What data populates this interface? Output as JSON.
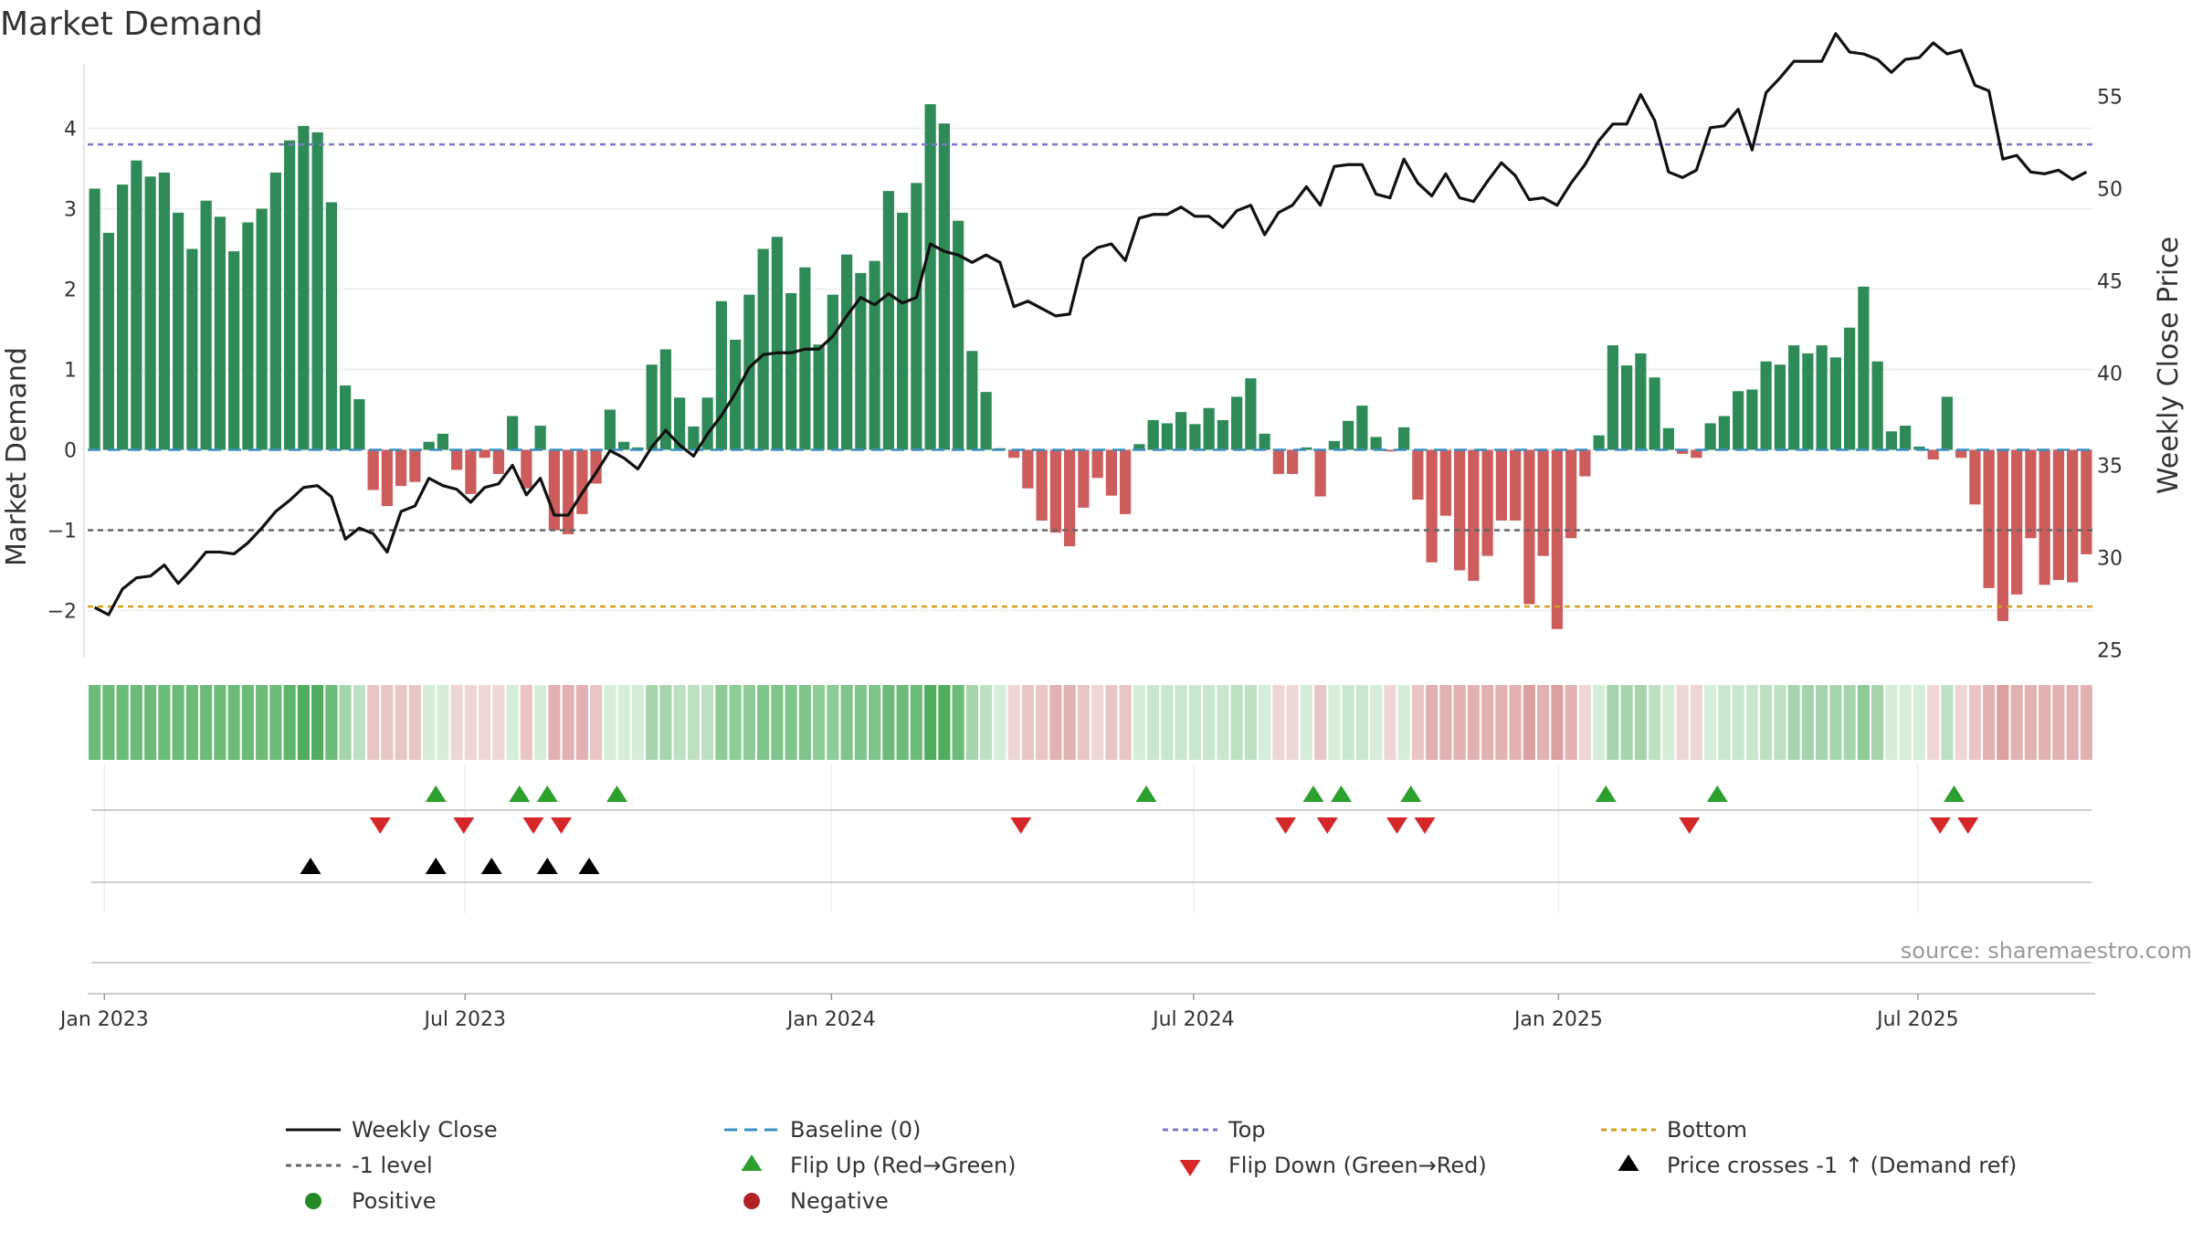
{
  "chart_data": {
    "type": "bar",
    "title": "Market Demand",
    "ylabel": "Market Demand",
    "y2label": "Weekly Close Price",
    "ylim": [
      -2.55,
      4.7
    ],
    "y2lim": [
      24.5,
      56.5
    ],
    "yticks": [
      -2,
      -1,
      0,
      1,
      2,
      3,
      4
    ],
    "y2ticks": [
      25,
      30,
      35,
      40,
      45,
      50,
      55
    ],
    "x_start": "2022-12-26",
    "x_interval_days": 7,
    "date_ticks": [
      {
        "label": "Jan 2023",
        "week": 0.7
      },
      {
        "label": "Jul 2023",
        "week": 26.6
      },
      {
        "label": "Jan 2024",
        "week": 52.9
      },
      {
        "label": "Jul 2024",
        "week": 78.9
      },
      {
        "label": "Jan 2025",
        "week": 105.1
      },
      {
        "label": "Jul 2025",
        "week": 130.9
      }
    ],
    "reference_lines": [
      {
        "name": "Top",
        "value": 3.8,
        "color": "#7b78c8",
        "dash": "6,5"
      },
      {
        "name": "-1 level",
        "value": -1,
        "color": "#666666",
        "dash": "6,5"
      },
      {
        "name": "Bottom",
        "value": -1.95,
        "color": "#d4a018",
        "dash": "6,5"
      },
      {
        "name": "Baseline (0)",
        "value": 0,
        "color": "#3a8fc0",
        "dash": "14,8"
      }
    ],
    "demand": [
      3.25,
      2.7,
      3.3,
      3.6,
      3.4,
      3.45,
      2.95,
      2.5,
      3.1,
      2.9,
      2.47,
      2.83,
      3.0,
      3.45,
      3.85,
      4.03,
      3.95,
      3.08,
      0.8,
      0.63,
      -0.5,
      -0.7,
      -0.45,
      -0.4,
      0.1,
      0.2,
      -0.25,
      -0.55,
      -0.1,
      -0.3,
      0.42,
      -0.48,
      0.3,
      -1.0,
      -1.05,
      -0.8,
      -0.42,
      0.5,
      0.1,
      0.03,
      1.06,
      1.25,
      0.65,
      0.29,
      0.65,
      1.85,
      1.37,
      1.93,
      2.5,
      2.65,
      1.95,
      2.27,
      1.31,
      1.93,
      2.43,
      2.2,
      2.35,
      3.22,
      2.95,
      3.32,
      4.3,
      4.06,
      2.85,
      1.23,
      0.72,
      0.02,
      -0.1,
      -0.48,
      -0.88,
      -1.03,
      -1.2,
      -0.72,
      -0.35,
      -0.57,
      -0.8,
      0.07,
      0.37,
      0.33,
      0.47,
      0.32,
      0.52,
      0.37,
      0.66,
      0.89,
      0.2,
      -0.3,
      -0.3,
      0.03,
      -0.58,
      0.11,
      0.36,
      0.55,
      0.16,
      -0.02,
      0.28,
      -0.62,
      -1.4,
      -0.82,
      -1.5,
      -1.63,
      -1.32,
      -0.88,
      -0.88,
      -1.92,
      -1.32,
      -2.23,
      -1.1,
      -0.33,
      0.18,
      1.3,
      1.05,
      1.2,
      0.9,
      0.27,
      -0.05,
      -0.1,
      0.33,
      0.42,
      0.73,
      0.75,
      1.1,
      1.06,
      1.3,
      1.2,
      1.3,
      1.15,
      1.52,
      2.03,
      1.1,
      0.23,
      0.3,
      0.04,
      -0.12,
      0.66,
      -0.1,
      -0.68,
      -1.72,
      -2.13,
      -1.8,
      -1.1,
      -1.68,
      -1.62,
      -1.65,
      -1.3
    ],
    "weekly_close": [
      27.3,
      26.9,
      28.3,
      28.9,
      29.0,
      29.6,
      28.6,
      29.4,
      30.3,
      30.3,
      30.2,
      30.8,
      31.6,
      32.5,
      33.1,
      33.8,
      33.9,
      33.3,
      31.0,
      31.6,
      31.3,
      30.3,
      32.5,
      32.8,
      34.3,
      33.9,
      33.7,
      33.0,
      33.8,
      34.0,
      35.0,
      33.4,
      34.3,
      32.3,
      32.3,
      33.5,
      34.6,
      35.8,
      35.4,
      34.8,
      36.0,
      36.9,
      36.1,
      35.5,
      36.7,
      37.7,
      38.9,
      40.3,
      41.0,
      41.1,
      41.1,
      41.3,
      41.3,
      42.0,
      43.1,
      44.1,
      43.7,
      44.3,
      43.8,
      44.1,
      47.0,
      46.6,
      46.4,
      46.0,
      46.4,
      46.0,
      43.6,
      43.9,
      43.5,
      43.1,
      43.2,
      46.2,
      46.8,
      47.0,
      46.1,
      48.4,
      48.6,
      48.6,
      49.0,
      48.5,
      48.5,
      47.9,
      48.8,
      49.1,
      47.5,
      48.7,
      49.1,
      50.1,
      49.1,
      51.2,
      51.3,
      51.3,
      49.7,
      49.5,
      51.6,
      50.3,
      49.6,
      50.8,
      49.5,
      49.3,
      50.4,
      51.4,
      50.7,
      49.4,
      49.5,
      49.1,
      50.3,
      51.3,
      52.6,
      53.5,
      53.5,
      55.1,
      53.7,
      50.9,
      50.6,
      51.0,
      53.3,
      53.4,
      54.3,
      52.1,
      55.2,
      56.0,
      56.9,
      56.9,
      56.9,
      58.4,
      57.4,
      57.3,
      57.0,
      56.3,
      57.0,
      57.1,
      57.9,
      57.3,
      57.5,
      55.6,
      55.3,
      51.6,
      51.8,
      50.9,
      50.8,
      51.0,
      50.5,
      50.9
    ],
    "strip_colors": [
      "#6dbb78",
      "#6dbb78",
      "#6dbb78",
      "#6dbb78",
      "#6dbb78",
      "#6dbb78",
      "#6dbb78",
      "#6dbb78",
      "#6dbb78",
      "#6dbb78",
      "#6dbb78",
      "#6dbb78",
      "#6dbb78",
      "#6dbb78",
      "#5fb56a",
      "#4fad5d",
      "#4fad5d",
      "#6dbb78",
      "#a6d5ad",
      "#bde0c2",
      "#e9c6c6",
      "#e9c6c6",
      "#e9c6c6",
      "#e9c6c6",
      "#d6eed9",
      "#d6eed9",
      "#efd6d6",
      "#efd6d6",
      "#efd6d6",
      "#efd6d6",
      "#d6eed9",
      "#e9c6c6",
      "#d6eed9",
      "#e2b1b1",
      "#e2b1b1",
      "#e2b1b1",
      "#e9c6c6",
      "#d6eed9",
      "#d6eed9",
      "#d6eed9",
      "#a6d5ad",
      "#a6d5ad",
      "#bde0c2",
      "#bde0c2",
      "#bde0c2",
      "#8dcc97",
      "#8dcc97",
      "#8dcc97",
      "#7fc48a",
      "#7fc48a",
      "#7fc48a",
      "#7fc48a",
      "#8dcc97",
      "#8dcc97",
      "#7fc48a",
      "#7fc48a",
      "#7fc48a",
      "#6dbb78",
      "#6dbb78",
      "#6dbb78",
      "#4fad5d",
      "#4fad5d",
      "#6dbb78",
      "#a6d5ad",
      "#bde0c2",
      "#d6eed9",
      "#efd6d6",
      "#e9c6c6",
      "#e9c6c6",
      "#e2b1b1",
      "#e2b1b1",
      "#e9c6c6",
      "#efd6d6",
      "#e9c6c6",
      "#e9c6c6",
      "#d6eed9",
      "#c9e7ce",
      "#c9e7ce",
      "#c9e7ce",
      "#c9e7ce",
      "#c9e7ce",
      "#c9e7ce",
      "#bde0c2",
      "#bde0c2",
      "#d6eed9",
      "#efd6d6",
      "#efd6d6",
      "#d6eed9",
      "#e9c6c6",
      "#d6eed9",
      "#c9e7ce",
      "#c9e7ce",
      "#d6eed9",
      "#efd6d6",
      "#d6eed9",
      "#e9c6c6",
      "#e2b1b1",
      "#e2b1b1",
      "#e2b1b1",
      "#e2b1b1",
      "#e2b1b1",
      "#e2b1b1",
      "#e2b1b1",
      "#dca0a0",
      "#e2b1b1",
      "#dca0a0",
      "#e2b1b1",
      "#efd6d6",
      "#d6eed9",
      "#a6d5ad",
      "#a6d5ad",
      "#a6d5ad",
      "#bde0c2",
      "#d6eed9",
      "#efd6d6",
      "#efd6d6",
      "#d6eed9",
      "#c9e7ce",
      "#c9e7ce",
      "#c9e7ce",
      "#bde0c2",
      "#bde0c2",
      "#a6d5ad",
      "#a6d5ad",
      "#a6d5ad",
      "#a6d5ad",
      "#a6d5ad",
      "#8dcc97",
      "#a6d5ad",
      "#d6eed9",
      "#d6eed9",
      "#d6eed9",
      "#efd6d6",
      "#bde0c2",
      "#efd6d6",
      "#e9c6c6",
      "#e2b1b1",
      "#dca0a0",
      "#e2b1b1",
      "#e2b1b1",
      "#e2b1b1",
      "#e2b1b1",
      "#e2b1b1",
      "#e2b1b1"
    ],
    "flip_up_weeks": [
      24.5,
      30.5,
      32.5,
      37.5,
      75.5,
      87.5,
      89.5,
      94.5,
      108.5,
      116.5,
      133.5
    ],
    "flip_down_weeks": [
      20.5,
      26.5,
      31.5,
      33.5,
      66.5,
      85.5,
      88.5,
      93.5,
      95.5,
      114.5,
      132.5,
      134.5
    ],
    "price_cross_weeks": [
      15.5,
      24.5,
      28.5,
      32.5,
      35.5
    ],
    "colors": {
      "positive_bar": "#2e8b57",
      "negative_bar": "#cd5c5c",
      "weekly_close": "#111111",
      "flip_up": "#2ca02c",
      "flip_down": "#d62728",
      "price_cross": "#000000",
      "positive_dot": "#228b22",
      "negative_dot": "#b22222"
    },
    "legend": [
      {
        "key": "close",
        "label": "Weekly Close"
      },
      {
        "key": "baseline",
        "label": "Baseline (0)"
      },
      {
        "key": "top",
        "label": "Top"
      },
      {
        "key": "bottom",
        "label": "Bottom"
      },
      {
        "key": "minus1",
        "label": "-1 level"
      },
      {
        "key": "flipup",
        "label": "Flip Up (Red→Green)"
      },
      {
        "key": "flipdown",
        "label": "Flip Down (Green→Red)"
      },
      {
        "key": "cross",
        "label": "Price crosses -1 ↑ (Demand ref)"
      },
      {
        "key": "positive",
        "label": "Positive"
      },
      {
        "key": "negative",
        "label": "Negative"
      }
    ],
    "source": "source: sharemaestro.com"
  }
}
